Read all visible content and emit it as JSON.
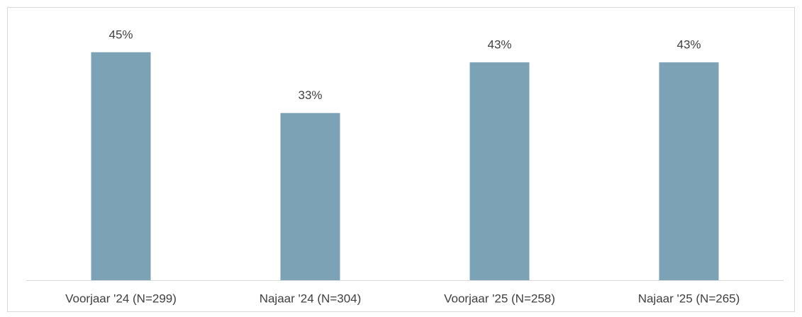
{
  "chart_data": {
    "type": "bar",
    "categories": [
      "Voorjaar '24 (N=299)",
      "Najaar '24 (N=304)",
      "Voorjaar '25 (N=258)",
      "Najaar '25 (N=265)"
    ],
    "values": [
      45,
      33,
      43,
      43
    ],
    "value_labels": [
      "45%",
      "33%",
      "43%",
      "43%"
    ],
    "color": "#7ba3b5",
    "ylim": [
      0,
      50
    ]
  }
}
